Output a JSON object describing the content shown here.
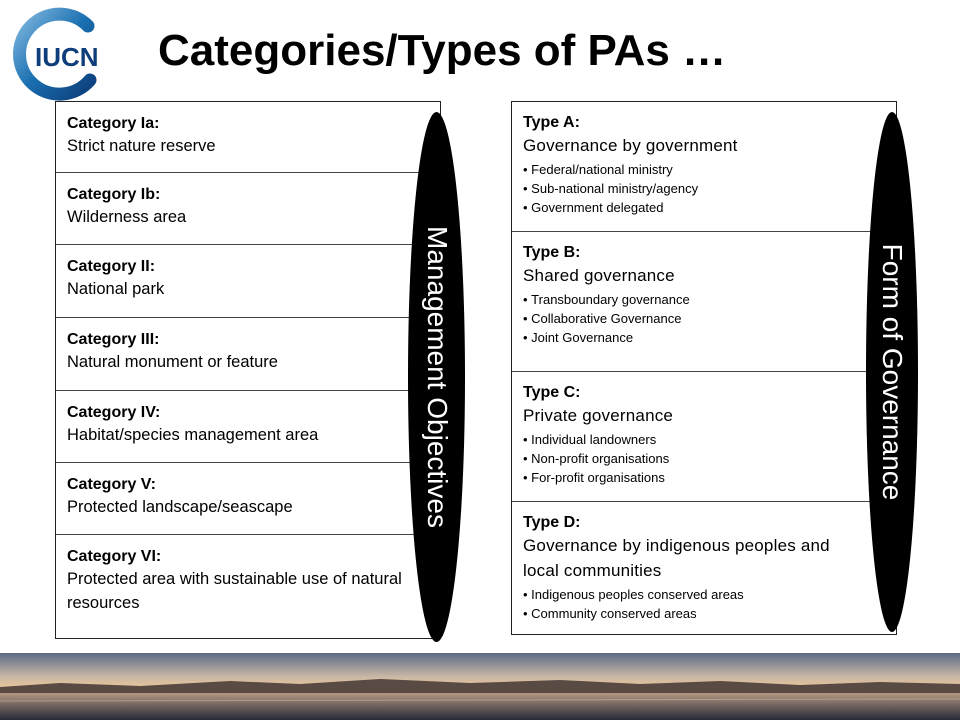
{
  "slide": {
    "title": "Categories/Types of PAs …",
    "logo_text": "IUCN",
    "logo_ring_color": "#1a6fb0",
    "logo_text_color": "#0d3d7a"
  },
  "categories": [
    {
      "title": "Category Ia:",
      "desc": "Strict nature reserve"
    },
    {
      "title": "Category Ib:",
      "desc": "Wilderness area"
    },
    {
      "title": "Category II:",
      "desc": "National park"
    },
    {
      "title": "Category III:",
      "desc": "Natural monument or feature"
    },
    {
      "title": "Category IV:",
      "desc": "Habitat/species management area"
    },
    {
      "title": "Category V:",
      "desc": "Protected landscape/seascape"
    },
    {
      "title": "Category VI:",
      "desc": "Protected area with sustainable use of natural resources"
    }
  ],
  "management_label": "Management Objectives",
  "types": [
    {
      "title": "Type A:",
      "desc": "Governance by government",
      "bullets": [
        "Federal/national ministry",
        "Sub-national ministry/agency",
        "Government delegated"
      ]
    },
    {
      "title": "Type B:",
      "desc": "Shared governance",
      "bullets": [
        "Transboundary governance",
        "Collaborative Governance",
        "Joint Governance"
      ]
    },
    {
      "title": "Type C:",
      "desc": "Private governance",
      "bullets": [
        "Individual landowners",
        "Non-profit organisations",
        "For-profit organisations"
      ]
    },
    {
      "title": "Type D:",
      "desc": "Governance by indigenous peoples and local communities",
      "bullets": [
        "Indigenous peoples conserved areas",
        "Community conserved areas"
      ]
    }
  ],
  "governance_label": "Form of Governance"
}
